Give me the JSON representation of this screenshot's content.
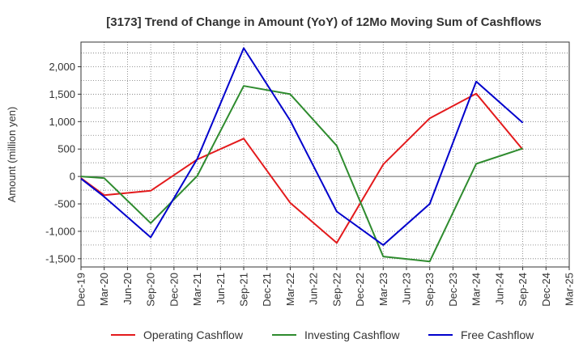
{
  "chart_data": {
    "type": "line",
    "title": "[3173]  Trend of Change in Amount (YoY) of 12Mo Moving Sum of Cashflows",
    "xlabel": "",
    "ylabel": "Amount (million yen)",
    "ylim": [
      -1650,
      2450
    ],
    "yticks": [
      -1500,
      -1000,
      -500,
      0,
      500,
      1000,
      1500,
      2000
    ],
    "ytick_labels": [
      "-1,500",
      "-1,000",
      "-500",
      "0",
      "500",
      "1,000",
      "1,500",
      "2,000"
    ],
    "categories": [
      "Dec-19",
      "Mar-20",
      "Jun-20",
      "Sep-20",
      "Dec-20",
      "Mar-21",
      "Jun-21",
      "Sep-21",
      "Dec-21",
      "Mar-22",
      "Jun-22",
      "Sep-22",
      "Dec-22",
      "Mar-23",
      "Jun-23",
      "Sep-23",
      "Dec-23",
      "Mar-24",
      "Jun-24",
      "Sep-24",
      "Dec-24",
      "Mar-25"
    ],
    "grid": true,
    "legend_position": "bottom",
    "series": [
      {
        "name": "Operating Cashflow",
        "color": "#e31a1c",
        "points": [
          [
            0,
            -30
          ],
          [
            1,
            -340
          ],
          [
            3,
            -260
          ],
          [
            5,
            310
          ],
          [
            7,
            690
          ],
          [
            9,
            -480
          ],
          [
            11,
            -1210
          ],
          [
            13,
            220
          ],
          [
            15,
            1060
          ],
          [
            17,
            1510
          ],
          [
            19,
            490
          ]
        ]
      },
      {
        "name": "Investing Cashflow",
        "color": "#2e8b2e",
        "points": [
          [
            0,
            0
          ],
          [
            1,
            -30
          ],
          [
            3,
            -850
          ],
          [
            5,
            10
          ],
          [
            7,
            1650
          ],
          [
            9,
            1500
          ],
          [
            11,
            560
          ],
          [
            13,
            -1460
          ],
          [
            15,
            -1550
          ],
          [
            17,
            230
          ],
          [
            19,
            510
          ]
        ]
      },
      {
        "name": "Free Cashflow",
        "color": "#0000cc",
        "points": [
          [
            0,
            -40
          ],
          [
            1,
            -370
          ],
          [
            3,
            -1110
          ],
          [
            5,
            320
          ],
          [
            7,
            2340
          ],
          [
            9,
            1020
          ],
          [
            11,
            -640
          ],
          [
            13,
            -1250
          ],
          [
            15,
            -500
          ],
          [
            17,
            1730
          ],
          [
            19,
            980
          ]
        ]
      }
    ]
  }
}
